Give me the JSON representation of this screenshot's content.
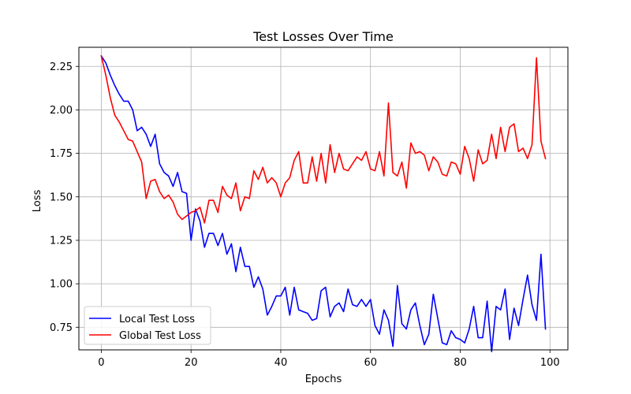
{
  "chart_data": {
    "type": "line",
    "title": "Test Losses Over Time",
    "xlabel": "Epochs",
    "ylabel": "Loss",
    "xlim": [
      -5,
      104
    ],
    "ylim": [
      0.62,
      2.36
    ],
    "xticks": [
      0,
      20,
      40,
      60,
      80,
      100
    ],
    "xtick_labels": [
      "0",
      "20",
      "40",
      "60",
      "80",
      "100"
    ],
    "yticks": [
      0.75,
      1.0,
      1.25,
      1.5,
      1.75,
      2.0,
      2.25
    ],
    "ytick_labels": [
      "0.75",
      "1.00",
      "1.25",
      "1.50",
      "1.75",
      "2.00",
      "2.25"
    ],
    "grid": true,
    "legend_position": "lower-left",
    "series": [
      {
        "name": "Local Test Loss",
        "color": "#0000ff",
        "values": [
          2.31,
          2.27,
          2.2,
          2.14,
          2.09,
          2.05,
          2.05,
          2.0,
          1.88,
          1.9,
          1.86,
          1.79,
          1.86,
          1.69,
          1.64,
          1.62,
          1.56,
          1.64,
          1.53,
          1.52,
          1.25,
          1.43,
          1.36,
          1.21,
          1.29,
          1.29,
          1.22,
          1.29,
          1.17,
          1.23,
          1.07,
          1.21,
          1.1,
          1.1,
          0.98,
          1.04,
          0.97,
          0.82,
          0.87,
          0.93,
          0.93,
          0.98,
          0.82,
          0.98,
          0.85,
          0.84,
          0.83,
          0.79,
          0.8,
          0.96,
          0.98,
          0.81,
          0.87,
          0.89,
          0.84,
          0.97,
          0.88,
          0.87,
          0.91,
          0.87,
          0.91,
          0.76,
          0.71,
          0.85,
          0.79,
          0.64,
          0.99,
          0.77,
          0.74,
          0.85,
          0.89,
          0.76,
          0.65,
          0.71,
          0.94,
          0.8,
          0.66,
          0.65,
          0.73,
          0.69,
          0.68,
          0.66,
          0.74,
          0.87,
          0.69,
          0.69,
          0.9,
          0.61,
          0.87,
          0.85,
          0.97,
          0.68,
          0.86,
          0.76,
          0.91,
          1.05,
          0.88,
          0.79,
          1.17,
          0.74
        ]
      },
      {
        "name": "Global Test Loss",
        "color": "#ff0000",
        "values": [
          2.31,
          2.2,
          2.07,
          1.97,
          1.93,
          1.88,
          1.83,
          1.82,
          1.76,
          1.7,
          1.49,
          1.59,
          1.6,
          1.53,
          1.49,
          1.51,
          1.47,
          1.4,
          1.37,
          1.39,
          1.41,
          1.42,
          1.44,
          1.35,
          1.48,
          1.48,
          1.41,
          1.56,
          1.51,
          1.49,
          1.58,
          1.42,
          1.5,
          1.49,
          1.65,
          1.6,
          1.67,
          1.58,
          1.61,
          1.58,
          1.5,
          1.58,
          1.61,
          1.71,
          1.76,
          1.58,
          1.58,
          1.73,
          1.59,
          1.75,
          1.58,
          1.8,
          1.64,
          1.75,
          1.66,
          1.65,
          1.69,
          1.73,
          1.71,
          1.76,
          1.66,
          1.65,
          1.76,
          1.62,
          2.04,
          1.64,
          1.62,
          1.7,
          1.55,
          1.81,
          1.75,
          1.76,
          1.74,
          1.65,
          1.73,
          1.7,
          1.63,
          1.62,
          1.7,
          1.69,
          1.63,
          1.79,
          1.72,
          1.59,
          1.77,
          1.69,
          1.71,
          1.86,
          1.72,
          1.9,
          1.76,
          1.9,
          1.92,
          1.76,
          1.78,
          1.72,
          1.8,
          2.3,
          1.82,
          1.72
        ]
      }
    ]
  }
}
